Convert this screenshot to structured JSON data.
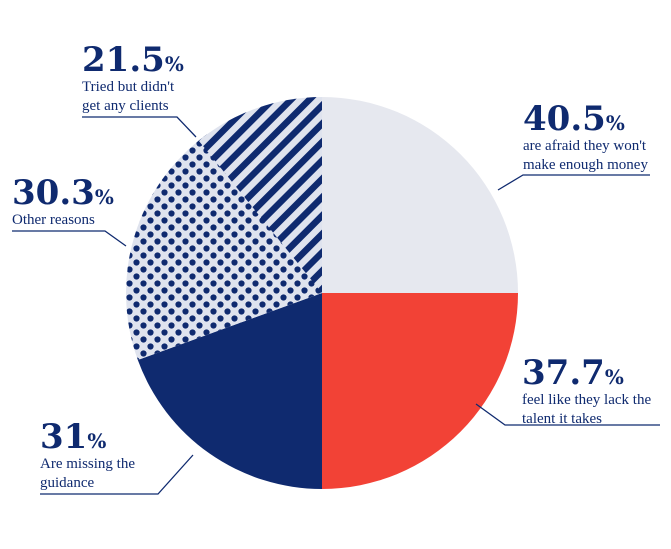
{
  "chart_data": {
    "type": "pie",
    "slices": [
      {
        "id": "afraid-money",
        "value": 40.5,
        "label_value": "40.5",
        "unit": "%",
        "text_lines": [
          "are afraid they won't",
          "make enough money"
        ],
        "color": "#e6e8ef",
        "pattern": "solid"
      },
      {
        "id": "lack-talent",
        "value": 37.7,
        "label_value": "37.7",
        "unit": "%",
        "text_lines": [
          "feel like they lack the",
          "talent it takes"
        ],
        "color": "#f24236",
        "pattern": "solid"
      },
      {
        "id": "missing-guidance",
        "value": 31,
        "label_value": "31",
        "unit": "%",
        "text_lines": [
          "Are missing the",
          "guidance"
        ],
        "color": "#0f2a6f",
        "pattern": "solid"
      },
      {
        "id": "other-reasons",
        "value": 30.3,
        "label_value": "30.3",
        "unit": "%",
        "text_lines": [
          "Other reasons"
        ],
        "color": "#0f2a6f",
        "pattern": "dots"
      },
      {
        "id": "tried-no-clients",
        "value": 21.5,
        "label_value": "21.5",
        "unit": "%",
        "text_lines": [
          "Tried but didn't",
          "get any clients"
        ],
        "color": "#0f2a6f",
        "pattern": "stripes"
      }
    ]
  },
  "colors": {
    "text": "#0f2a6f",
    "light_fill": "#e6e8ef",
    "pattern_bg": "#dfe3ee",
    "red": "#f24236",
    "navy": "#0f2a6f"
  }
}
